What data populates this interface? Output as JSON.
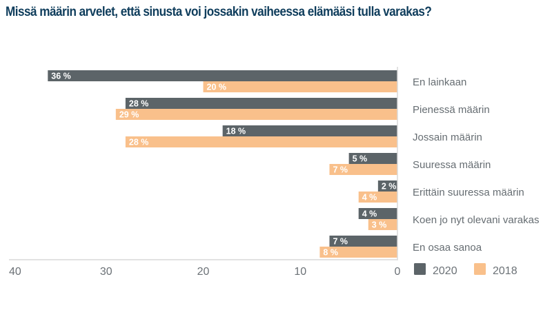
{
  "chart_data": {
    "type": "bar",
    "orientation": "horizontal",
    "title": "Missä määrin arvelet, että sinusta voi jossakin vaiheessa elämääsi tulla varakas?",
    "xlabel": "",
    "ylabel": "",
    "xlim": [
      0,
      40
    ],
    "x_direction": "reversed",
    "x_ticks": [
      "40",
      "30",
      "20",
      "10",
      "0"
    ],
    "x_tick_values": [
      40,
      30,
      20,
      10,
      0
    ],
    "grid": false,
    "legend_position": "bottom-right",
    "categories": [
      "En lainkaan",
      "Pienessä määrin",
      "Jossain määrin",
      "Suuressa määrin",
      "Erittäin suuressa määrin",
      "Koen jo nyt olevani varakas",
      "En osaa sanoa"
    ],
    "series": [
      {
        "name": "2020",
        "color": "#5c6468",
        "label_color": "#ffffff",
        "outside_label_color": "#5c6468",
        "values": [
          36,
          28,
          18,
          5,
          2,
          4,
          7
        ],
        "labels": [
          "36 %",
          "28 %",
          "18 %",
          "5 %",
          "2 %",
          "4 %",
          "7 %"
        ]
      },
      {
        "name": "2018",
        "color": "#f9c08b",
        "label_color": "#ffffff",
        "outside_label_color": "#f9c08b",
        "values": [
          20,
          29,
          28,
          7,
          4,
          3,
          8
        ],
        "labels": [
          "20 %",
          "29 %",
          "28 %",
          "7 %",
          "4 %",
          "3 %",
          "8 %"
        ]
      }
    ]
  }
}
